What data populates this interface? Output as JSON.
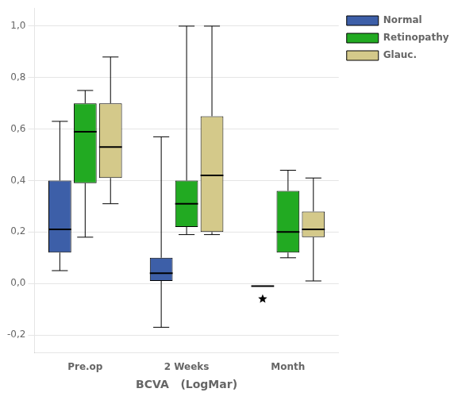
{
  "chart_data": {
    "type": "box",
    "xlabel": "BCVA   (LogMar)",
    "categories": [
      "Pre.op",
      "2 Weeks",
      "Month"
    ],
    "series": [
      {
        "name": "Normal",
        "color": "#3D5FA8",
        "values": [
          {
            "whislo": 0.05,
            "q1": 0.12,
            "med": 0.21,
            "q3": 0.4,
            "whishi": 0.63
          },
          {
            "whislo": -0.17,
            "q1": 0.01,
            "med": 0.04,
            "q3": 0.1,
            "whishi": 0.57
          },
          {
            "whislo": -0.01,
            "q1": -0.01,
            "med": -0.01,
            "q3": -0.01,
            "whishi": -0.01,
            "fliers": [
              -0.06
            ]
          }
        ]
      },
      {
        "name": "Retinopathy",
        "color": "#22AA22",
        "values": [
          {
            "whislo": 0.18,
            "q1": 0.39,
            "med": 0.59,
            "q3": 0.7,
            "whishi": 0.75
          },
          {
            "whislo": 0.19,
            "q1": 0.22,
            "med": 0.31,
            "q3": 0.4,
            "whishi": 1.0
          },
          {
            "whislo": 0.1,
            "q1": 0.12,
            "med": 0.2,
            "q3": 0.36,
            "whishi": 0.44
          }
        ]
      },
      {
        "name": "Glauc.",
        "color": "#D4C98A",
        "values": [
          {
            "whislo": 0.31,
            "q1": 0.41,
            "med": 0.53,
            "q3": 0.7,
            "whishi": 0.88
          },
          {
            "whislo": 0.19,
            "q1": 0.2,
            "med": 0.42,
            "q3": 0.65,
            "whishi": 1.0
          },
          {
            "whislo": 0.01,
            "q1": 0.18,
            "med": 0.21,
            "q3": 0.28,
            "whishi": 0.41
          }
        ]
      }
    ],
    "ylim": [
      -0.27,
      1.07
    ],
    "yticks": [
      {
        "value": -0.2,
        "label": "-0,2"
      },
      {
        "value": 0.0,
        "label": "0,0"
      },
      {
        "value": 0.2,
        "label": "0,2"
      },
      {
        "value": 0.4,
        "label": "0,4"
      },
      {
        "value": 0.6,
        "label": "0,6"
      },
      {
        "value": 0.8,
        "label": "0,8"
      },
      {
        "value": 1.0,
        "label": "1,0"
      }
    ],
    "grid": true,
    "legend": "right"
  }
}
